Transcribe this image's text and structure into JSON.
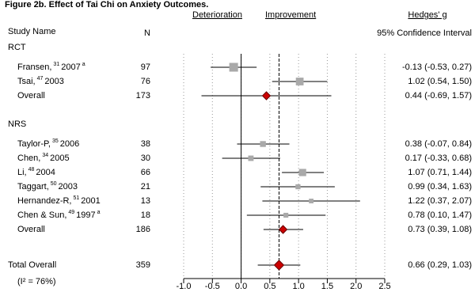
{
  "chart_data": {
    "type": "forest",
    "title": "Figure 2b. Effect of Tai Chi on Anxiety Outcomes.",
    "headers": {
      "study": "Study Name",
      "n": "N",
      "left": "Deterioration",
      "right": "Improvement",
      "effect": "Hedges' g",
      "ci": "95% Confidence Interval"
    },
    "groups": [
      {
        "name": "RCT",
        "studies": [
          {
            "name": "Fransen,",
            "ref": "31",
            "year": "2007",
            "note": "a",
            "n": 97,
            "estimate": -0.13,
            "lower": -0.53,
            "upper": 0.27,
            "ci_label": "-0.13 (-0.53, 0.27)"
          },
          {
            "name": "Tsai,",
            "ref": "47",
            "year": "2003",
            "n": 76,
            "estimate": 1.02,
            "lower": 0.54,
            "upper": 1.5,
            "ci_label": "1.02 (0.54, 1.50)"
          }
        ],
        "overall": {
          "name": "Overall",
          "n": 173,
          "estimate": 0.44,
          "lower": -0.69,
          "upper": 1.57,
          "ci_label": "0.44 (-0.69, 1.57)"
        }
      },
      {
        "name": "NRS",
        "studies": [
          {
            "name": "Taylor-P,",
            "ref": "35",
            "year": "2006",
            "n": 38,
            "estimate": 0.38,
            "lower": -0.07,
            "upper": 0.84,
            "ci_label": "0.38 (-0.07, 0.84)"
          },
          {
            "name": "Chen,",
            "ref": "34",
            "year": "2005",
            "n": 30,
            "estimate": 0.17,
            "lower": -0.33,
            "upper": 0.68,
            "ci_label": "0.17 (-0.33, 0.68)"
          },
          {
            "name": "Li,",
            "ref": "48",
            "year": "2004",
            "n": 66,
            "estimate": 1.07,
            "lower": 0.71,
            "upper": 1.44,
            "ci_label": "1.07 (0.71, 1.44)"
          },
          {
            "name": "Taggart,",
            "ref": "50",
            "year": "2003",
            "n": 21,
            "estimate": 0.99,
            "lower": 0.34,
            "upper": 1.63,
            "ci_label": "0.99 (0.34, 1.63)"
          },
          {
            "name": "Hernandez-R,",
            "ref": "51",
            "year": "2001",
            "n": 13,
            "estimate": 1.22,
            "lower": 0.37,
            "upper": 2.07,
            "ci_label": "1.22 (0.37, 2.07)"
          },
          {
            "name": "Chen & Sun,",
            "ref": "49",
            "year": "1997",
            "note": "a",
            "n": 18,
            "estimate": 0.78,
            "lower": 0.1,
            "upper": 1.47,
            "ci_label": "0.78 (0.10, 1.47)"
          }
        ],
        "overall": {
          "name": "Overall",
          "n": 186,
          "estimate": 0.73,
          "lower": 0.39,
          "upper": 1.08,
          "ci_label": "0.73 (0.39, 1.08)"
        }
      }
    ],
    "total": {
      "name": "Total Overall",
      "n": 359,
      "estimate": 0.66,
      "lower": 0.29,
      "upper": 1.03,
      "ci_label": "0.66 (0.29, 1.03)",
      "heterogeneity": "(I² = 76%)"
    },
    "xlim": [
      -1,
      2.5
    ],
    "xticks": [
      {
        "value": -1,
        "label": "-1.0"
      },
      -0.5,
      {
        "value": 0,
        "label": "0.0"
      },
      0.5,
      {
        "value": 1,
        "label": "1.0"
      },
      1.5,
      {
        "value": 2,
        "label": "2.0"
      },
      2.5
    ],
    "grid": true,
    "colors": {
      "study": "#a9a9a9",
      "pooled": "#cc0000"
    }
  }
}
